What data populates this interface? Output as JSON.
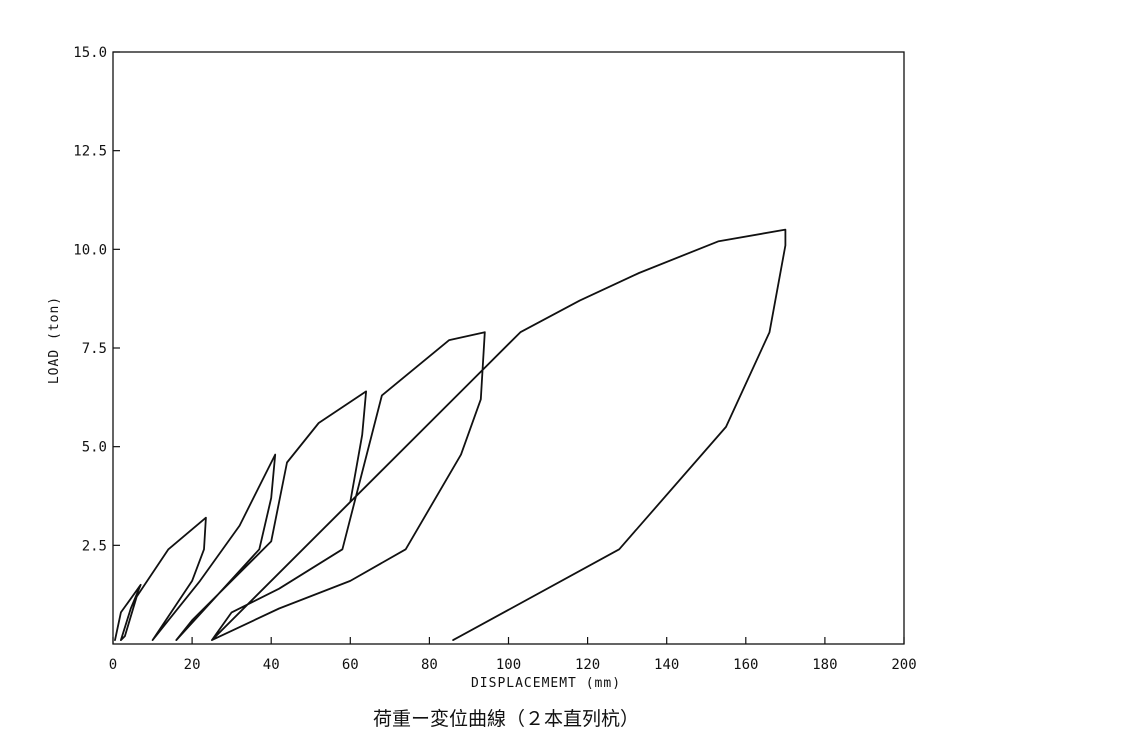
{
  "chart_data": {
    "type": "line",
    "title": "荷重ー変位曲線（２本直列杭）",
    "xlabel": "DISPLACEMEMT (mm)",
    "ylabel": "LOAD (ton)",
    "xlim": [
      0,
      200
    ],
    "ylim": [
      0,
      15
    ],
    "x_ticks": [
      "0",
      "20",
      "40",
      "60",
      "80",
      "100",
      "120",
      "140",
      "160",
      "180",
      "200"
    ],
    "y_ticks": [
      "2.5",
      "5.0",
      "7.5",
      "10.0",
      "12.5",
      "15.0"
    ],
    "grid": false,
    "legend": "none",
    "series": [
      {
        "points": [
          [
            0.5,
            0.1
          ],
          [
            2,
            0.8
          ],
          [
            7,
            1.5
          ],
          [
            4.5,
            0.9
          ],
          [
            2,
            0.1
          ],
          [
            3,
            0.2
          ],
          [
            6,
            1.2
          ],
          [
            14,
            2.4
          ],
          [
            23.5,
            3.2
          ],
          [
            23,
            2.4
          ],
          [
            20,
            1.6
          ],
          [
            10,
            0.1
          ],
          [
            14,
            0.6
          ],
          [
            22,
            1.6
          ],
          [
            32,
            3.0
          ],
          [
            41,
            4.8
          ],
          [
            40,
            3.7
          ],
          [
            37,
            2.4
          ],
          [
            16,
            0.1
          ],
          [
            20,
            0.6
          ],
          [
            30,
            1.6
          ],
          [
            40,
            2.6
          ],
          [
            44,
            4.6
          ],
          [
            52,
            5.6
          ],
          [
            64,
            6.4
          ],
          [
            63,
            5.3
          ],
          [
            60,
            3.6
          ],
          [
            25,
            0.1
          ],
          [
            30,
            0.8
          ],
          [
            42,
            1.4
          ],
          [
            58,
            2.4
          ],
          [
            68,
            6.3
          ],
          [
            85,
            7.7
          ],
          [
            94,
            7.9
          ],
          [
            93,
            6.2
          ],
          [
            88,
            4.8
          ],
          [
            74,
            2.4
          ],
          [
            60,
            1.6
          ],
          [
            42,
            0.9
          ],
          [
            25,
            0.1
          ],
          [
            103,
            7.9
          ],
          [
            118,
            8.7
          ],
          [
            133,
            9.4
          ],
          [
            153,
            10.2
          ],
          [
            170,
            10.5
          ],
          [
            170,
            10.1
          ],
          [
            166,
            7.9
          ],
          [
            155,
            5.5
          ],
          [
            128,
            2.4
          ],
          [
            86,
            0.1
          ]
        ]
      }
    ]
  }
}
